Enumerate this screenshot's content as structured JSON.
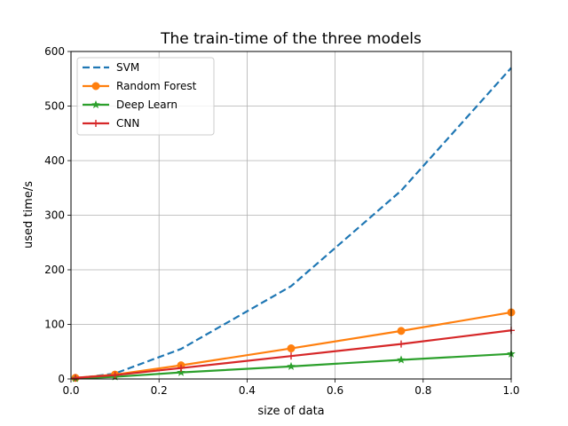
{
  "chart_data": {
    "type": "line",
    "title": "The train-time of the three models",
    "xlabel": "size of data",
    "ylabel": "used time/s",
    "xlim": [
      0,
      1.0
    ],
    "ylim": [
      0,
      600
    ],
    "xticks": [
      "0.0",
      "0.2",
      "0.4",
      "0.6",
      "0.8",
      "1.0"
    ],
    "xtick_values": [
      0,
      0.2,
      0.4,
      0.6,
      0.8,
      1.0
    ],
    "yticks": [
      "0",
      "100",
      "200",
      "300",
      "400",
      "500",
      "600"
    ],
    "ytick_values": [
      0,
      100,
      200,
      300,
      400,
      500,
      600
    ],
    "grid": true,
    "legend_position": "top-left",
    "x": [
      0.01,
      0.1,
      0.25,
      0.5,
      0.75,
      1.0
    ],
    "series": [
      {
        "name": "SVM",
        "color": "#1f77b4",
        "linestyle": "dashed",
        "marker": "none",
        "values": [
          1,
          10,
          55,
          170,
          345,
          570
        ]
      },
      {
        "name": "Random Forest",
        "color": "#ff7f0e",
        "linestyle": "solid",
        "marker": "circle",
        "values": [
          2,
          8,
          25,
          56,
          88,
          122
        ]
      },
      {
        "name": "Deep Learn",
        "color": "#2ca02c",
        "linestyle": "solid",
        "marker": "star",
        "values": [
          1,
          4,
          12,
          23,
          35,
          46
        ]
      },
      {
        "name": "CNN",
        "color": "#d62728",
        "linestyle": "solid",
        "marker": "plus",
        "values": [
          2,
          7,
          20,
          42,
          64,
          89
        ]
      }
    ]
  }
}
